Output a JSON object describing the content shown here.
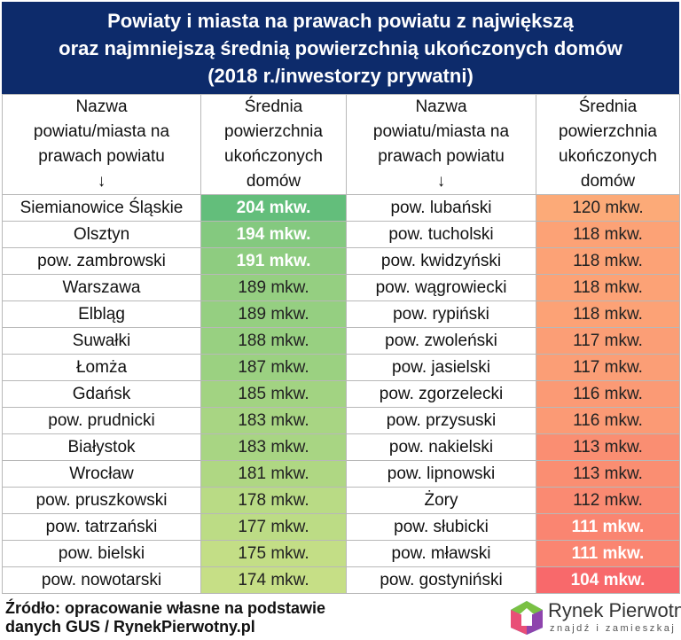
{
  "title": {
    "line1": "Powiaty i miasta na prawach powiatu z największą",
    "line2": "oraz najmniejszą średnią powierzchnią ukończonych domów",
    "line3": "(2018 r./inwestorzy prywatni)"
  },
  "headers": {
    "name_line1": "Nazwa",
    "name_line2": "powiatu/miasta na",
    "name_line3": "prawach powiatu",
    "name_arrow": "↓",
    "area_line1": "Średnia",
    "area_line2": "powierzchnia",
    "area_line3": "ukończonych",
    "area_line4": "domów"
  },
  "colors": {
    "largest_max": "#63be7b",
    "largest_min": "#c6df86",
    "smallest_max": "#fcaa78",
    "smallest_min": "#f8696b",
    "title_bg": "#0d2b6b"
  },
  "largest": [
    {
      "name": "Siemianowice Śląskie",
      "value": "204 mkw.",
      "num": 204
    },
    {
      "name": "Olsztyn",
      "value": "194 mkw.",
      "num": 194
    },
    {
      "name": "pow. zambrowski",
      "value": "191 mkw.",
      "num": 191
    },
    {
      "name": "Warszawa",
      "value": "189 mkw.",
      "num": 189
    },
    {
      "name": "Elbląg",
      "value": "189 mkw.",
      "num": 189
    },
    {
      "name": "Suwałki",
      "value": "188 mkw.",
      "num": 188
    },
    {
      "name": "Łomża",
      "value": "187 mkw.",
      "num": 187
    },
    {
      "name": "Gdańsk",
      "value": "185 mkw.",
      "num": 185
    },
    {
      "name": "pow. prudnicki",
      "value": "183 mkw.",
      "num": 183
    },
    {
      "name": "Białystok",
      "value": "183 mkw.",
      "num": 183
    },
    {
      "name": "Wrocław",
      "value": "181 mkw.",
      "num": 181
    },
    {
      "name": "pow. pruszkowski",
      "value": "178 mkw.",
      "num": 178
    },
    {
      "name": "pow. tatrzański",
      "value": "177 mkw.",
      "num": 177
    },
    {
      "name": "pow. bielski",
      "value": "175 mkw.",
      "num": 175
    },
    {
      "name": "pow. nowotarski",
      "value": "174 mkw.",
      "num": 174
    }
  ],
  "smallest": [
    {
      "name": "pow. lubański",
      "value": "120 mkw.",
      "num": 120
    },
    {
      "name": "pow. tucholski",
      "value": "118 mkw.",
      "num": 118
    },
    {
      "name": "pow. kwidzyński",
      "value": "118 mkw.",
      "num": 118
    },
    {
      "name": "pow. wągrowiecki",
      "value": "118 mkw.",
      "num": 118
    },
    {
      "name": "pow. rypiński",
      "value": "118 mkw.",
      "num": 118
    },
    {
      "name": "pow. zwoleński",
      "value": "117 mkw.",
      "num": 117
    },
    {
      "name": "pow. jasielski",
      "value": "117 mkw.",
      "num": 117
    },
    {
      "name": "pow. zgorzelecki",
      "value": "116 mkw.",
      "num": 116
    },
    {
      "name": "pow. przysuski",
      "value": "116 mkw.",
      "num": 116
    },
    {
      "name": "pow. nakielski",
      "value": "113 mkw.",
      "num": 113
    },
    {
      "name": "pow. lipnowski",
      "value": "113 mkw.",
      "num": 113
    },
    {
      "name": "Żory",
      "value": "112 mkw.",
      "num": 112
    },
    {
      "name": "pow. słubicki",
      "value": "111 mkw.",
      "num": 111
    },
    {
      "name": "pow. mławski",
      "value": "111 mkw.",
      "num": 111
    },
    {
      "name": "pow. gostyniński",
      "value": "104 mkw.",
      "num": 104
    }
  ],
  "source": {
    "line1": "Źródło: opracowanie własne na podstawie",
    "line2": "danych GUS / RynekPierwotny.pl"
  },
  "logo": {
    "brand": "Rynek Pierwotny",
    "tagline": "znajdź i zamieszkaj"
  }
}
